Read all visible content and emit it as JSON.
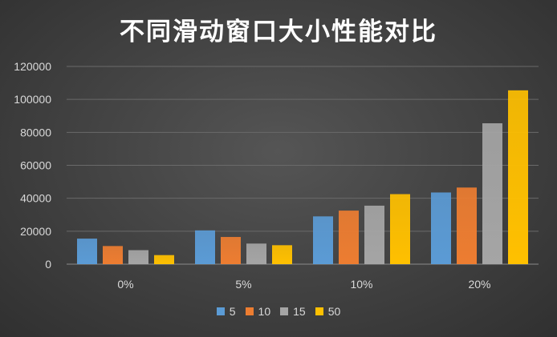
{
  "chart_data": {
    "type": "bar",
    "title": "不同滑动窗口大小性能对比",
    "xlabel": "",
    "ylabel": "",
    "categories": [
      "0%",
      "5%",
      "10%",
      "20%"
    ],
    "series": [
      {
        "name": "5",
        "color": "#5b9bd5",
        "values": [
          15500,
          20500,
          29000,
          43500
        ]
      },
      {
        "name": "10",
        "color": "#ed7d31",
        "values": [
          11000,
          16500,
          32500,
          46500
        ]
      },
      {
        "name": "15",
        "color": "#a5a5a5",
        "values": [
          8500,
          12500,
          35500,
          85500
        ]
      },
      {
        "name": "50",
        "color": "#ffc000",
        "values": [
          5500,
          11500,
          42500,
          105500
        ]
      }
    ],
    "ylim": [
      0,
      120000
    ],
    "yticks": [
      "0",
      "20000",
      "40000",
      "60000",
      "80000",
      "100000",
      "120000"
    ],
    "grid": true,
    "legend": "bottom"
  }
}
